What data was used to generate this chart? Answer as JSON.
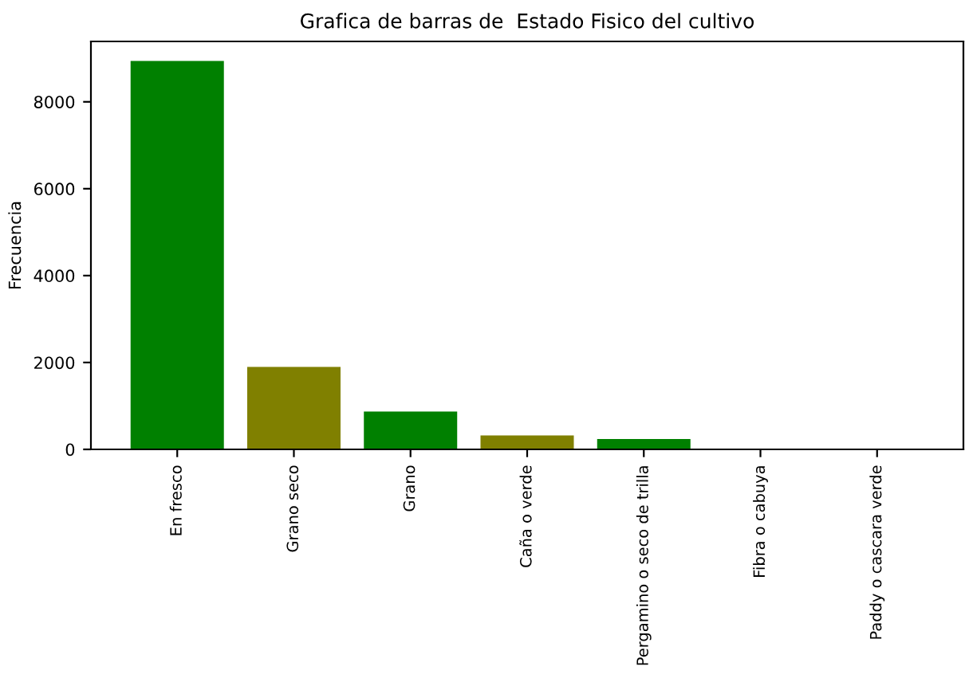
{
  "chart_data": {
    "type": "bar",
    "title": "Grafica de barras de  Estado Fisico del cultivo",
    "ylabel": "Frecuencia",
    "categories": [
      "En fresco",
      "Grano seco",
      "Grano",
      "Caña o verde",
      "Pergamino o seco de trilla",
      "Fibra o cabuya",
      "Paddy o cascara verde"
    ],
    "values": [
      8940,
      1900,
      870,
      320,
      240,
      0,
      0
    ],
    "colors": [
      "#008000",
      "#808000",
      "#008000",
      "#808000",
      "#008000",
      "#808000",
      "#008000"
    ],
    "ylim": [
      0,
      9390
    ],
    "yticks": [
      0,
      2000,
      4000,
      6000,
      8000
    ],
    "grid": false
  }
}
